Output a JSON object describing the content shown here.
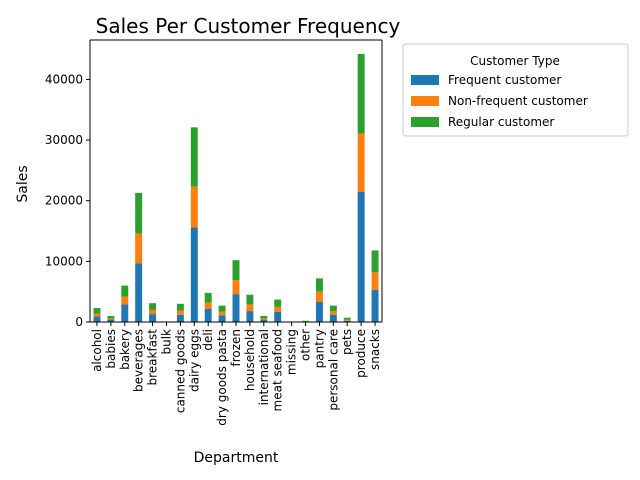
{
  "chart_data": {
    "type": "bar",
    "stacked": true,
    "title": "Sales Per Customer Frequency",
    "xlabel": "Department",
    "ylabel": "Sales",
    "ylim": [
      0,
      46500
    ],
    "yticks": [
      0,
      10000,
      20000,
      30000,
      40000
    ],
    "grid": false,
    "legend_title": "Customer Type",
    "legend_position": "outside-top-right",
    "categories": [
      "alcohol",
      "babies",
      "bakery",
      "beverages",
      "breakfast",
      "bulk",
      "canned goods",
      "dairy eggs",
      "deli",
      "dry goods pasta",
      "frozen",
      "household",
      "international",
      "meat seafood",
      "missing",
      "other",
      "pantry",
      "personal care",
      "pets",
      "produce",
      "snacks"
    ],
    "series": [
      {
        "name": "Frequent customer",
        "color": "#1f77b4",
        "values": [
          900,
          400,
          2900,
          9700,
          1300,
          0,
          1200,
          15600,
          2200,
          1100,
          4600,
          1800,
          400,
          1700,
          0,
          0,
          3300,
          1200,
          200,
          21500,
          5300
        ]
      },
      {
        "name": "Non-frequent customer",
        "color": "#ff7f0e",
        "values": [
          500,
          200,
          1300,
          4900,
          700,
          0,
          700,
          6700,
          1000,
          600,
          2300,
          1100,
          200,
          800,
          0,
          100,
          1700,
          600,
          200,
          9600,
          2900
        ]
      },
      {
        "name": "Regular customer",
        "color": "#2ca02c",
        "values": [
          900,
          400,
          1800,
          6700,
          1100,
          0,
          1100,
          9800,
          1600,
          1000,
          3300,
          1600,
          400,
          1200,
          0,
          100,
          2200,
          900,
          300,
          13100,
          3600
        ]
      }
    ]
  }
}
